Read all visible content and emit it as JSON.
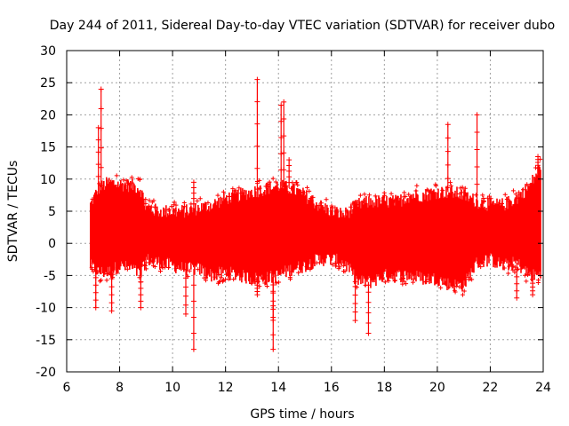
{
  "chart_data": {
    "type": "scatter",
    "title": "Day 244 of 2011, Sidereal Day-to-day VTEC variation (SDTVAR) for receiver dubo",
    "xlabel": "GPS time / hours",
    "ylabel": "SDTVAR / TECUs",
    "xlim": [
      6,
      24
    ],
    "ylim": [
      -20,
      30
    ],
    "x_ticks": [
      "6",
      "8",
      "10",
      "12",
      "14",
      "16",
      "18",
      "20",
      "22",
      "24"
    ],
    "y_ticks": [
      "-20",
      "-15",
      "-10",
      "-5",
      "0",
      "5",
      "10",
      "15",
      "20",
      "25",
      "30"
    ],
    "grid": true,
    "marker": "+",
    "color": "#ff0000",
    "series": [
      {
        "name": "SDTVAR",
        "band": [
          {
            "x": 6.9,
            "lo": -3.5,
            "hi": 6.0
          },
          {
            "x": 7.2,
            "lo": -4.5,
            "hi": 8.5
          },
          {
            "x": 7.6,
            "lo": -4.5,
            "hi": 9.5
          },
          {
            "x": 8.0,
            "lo": -3.5,
            "hi": 9.2
          },
          {
            "x": 8.5,
            "lo": -4.0,
            "hi": 9.0
          },
          {
            "x": 8.8,
            "lo": -5.0,
            "hi": 8.5
          },
          {
            "x": 9.0,
            "lo": -2.5,
            "hi": 5.5
          },
          {
            "x": 9.5,
            "lo": -3.0,
            "hi": 5.0
          },
          {
            "x": 10.0,
            "lo": -3.5,
            "hi": 5.0
          },
          {
            "x": 10.5,
            "lo": -4.0,
            "hi": 5.0
          },
          {
            "x": 11.0,
            "lo": -4.0,
            "hi": 5.5
          },
          {
            "x": 11.5,
            "lo": -5.0,
            "hi": 6.0
          },
          {
            "x": 12.0,
            "lo": -4.5,
            "hi": 7.0
          },
          {
            "x": 12.5,
            "lo": -5.0,
            "hi": 7.5
          },
          {
            "x": 13.0,
            "lo": -5.5,
            "hi": 8.0
          },
          {
            "x": 13.5,
            "lo": -5.5,
            "hi": 8.5
          },
          {
            "x": 14.0,
            "lo": -5.0,
            "hi": 9.0
          },
          {
            "x": 14.5,
            "lo": -4.0,
            "hi": 8.5
          },
          {
            "x": 15.0,
            "lo": -3.5,
            "hi": 7.5
          },
          {
            "x": 15.5,
            "lo": -2.5,
            "hi": 6.0
          },
          {
            "x": 16.0,
            "lo": -2.5,
            "hi": 5.0
          },
          {
            "x": 16.5,
            "lo": -3.0,
            "hi": 4.5
          },
          {
            "x": 17.0,
            "lo": -6.0,
            "hi": 6.0
          },
          {
            "x": 17.5,
            "lo": -6.0,
            "hi": 6.5
          },
          {
            "x": 18.0,
            "lo": -5.0,
            "hi": 6.5
          },
          {
            "x": 18.5,
            "lo": -5.0,
            "hi": 6.5
          },
          {
            "x": 19.0,
            "lo": -5.0,
            "hi": 7.5
          },
          {
            "x": 19.5,
            "lo": -5.5,
            "hi": 7.5
          },
          {
            "x": 20.0,
            "lo": -5.5,
            "hi": 8.0
          },
          {
            "x": 20.5,
            "lo": -6.5,
            "hi": 8.0
          },
          {
            "x": 21.0,
            "lo": -6.5,
            "hi": 7.5
          },
          {
            "x": 21.5,
            "lo": -3.0,
            "hi": 6.5
          },
          {
            "x": 22.0,
            "lo": -2.5,
            "hi": 6.0
          },
          {
            "x": 22.5,
            "lo": -3.5,
            "hi": 6.0
          },
          {
            "x": 23.0,
            "lo": -3.0,
            "hi": 7.0
          },
          {
            "x": 23.5,
            "lo": -5.0,
            "hi": 9.0
          },
          {
            "x": 23.9,
            "lo": -5.0,
            "hi": 12.0
          }
        ],
        "spikes": [
          {
            "x": 7.3,
            "y": 24.0
          },
          {
            "x": 7.2,
            "y": 18.0
          },
          {
            "x": 7.1,
            "y": -10.0
          },
          {
            "x": 7.7,
            "y": -10.5
          },
          {
            "x": 8.8,
            "y": -10.0
          },
          {
            "x": 10.5,
            "y": -11.0
          },
          {
            "x": 10.8,
            "y": 9.5
          },
          {
            "x": 10.8,
            "y": -16.5
          },
          {
            "x": 13.2,
            "y": 25.5
          },
          {
            "x": 13.2,
            "y": -8.0
          },
          {
            "x": 13.8,
            "y": -11.5
          },
          {
            "x": 13.8,
            "y": -16.5
          },
          {
            "x": 14.1,
            "y": 21.5
          },
          {
            "x": 14.2,
            "y": 22.0
          },
          {
            "x": 14.4,
            "y": 13.0
          },
          {
            "x": 16.9,
            "y": -12.0
          },
          {
            "x": 17.4,
            "y": -14.0
          },
          {
            "x": 20.4,
            "y": 18.5
          },
          {
            "x": 21.5,
            "y": 20.0
          },
          {
            "x": 23.0,
            "y": -8.5
          },
          {
            "x": 23.6,
            "y": -8.0
          },
          {
            "x": 23.8,
            "y": 13.5
          }
        ]
      }
    ]
  }
}
